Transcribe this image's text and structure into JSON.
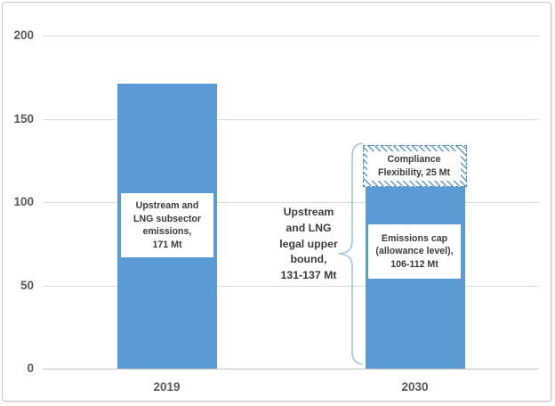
{
  "chart_data": {
    "type": "bar",
    "title": "",
    "categories": [
      "2019",
      "2030"
    ],
    "ylim": [
      0,
      200
    ],
    "yticks": [
      0,
      50,
      100,
      150,
      200
    ],
    "gridlines": true,
    "legend": "none",
    "bars": [
      {
        "category": "2019",
        "segments": [
          {
            "label": "Upstream and LNG subsector emissions, 171 Mt",
            "value": 171,
            "range": "171",
            "style": "solid"
          }
        ]
      },
      {
        "category": "2030",
        "segments": [
          {
            "label": "Emissions cap (allowance level), 106-112 Mt",
            "value": 109,
            "range": "106-112",
            "style": "solid"
          },
          {
            "label": "Compliance Flexibility, 25 Mt",
            "value": 25,
            "range": "25",
            "style": "hatched"
          }
        ]
      }
    ],
    "annotations": {
      "bar2019_label": "Upstream and\nLNG subsector\nemissions,\n171 Mt",
      "brace_label": "Upstream\nand LNG\nlegal upper\nbound,\n131-137 Mt",
      "compliance_label": "Compliance\nFlexibility, 25 Mt",
      "cap_label": "Emissions cap\n(allowance level),\n106-112 Mt"
    },
    "colors": {
      "bar": "#5B9BD5",
      "stripe": "#5B9BD5",
      "hatch_border": "#4E8BC9",
      "brace": "#9DC3E6",
      "grid": "#D9D9D9",
      "axis_text": "#595959",
      "label_text": "#3B3B3B"
    }
  }
}
